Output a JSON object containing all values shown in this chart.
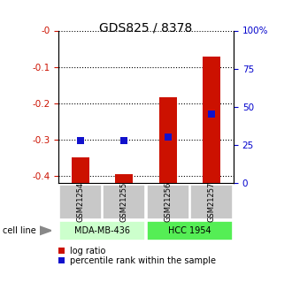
{
  "title": "GDS825 / 8378",
  "samples": [
    "GSM21254",
    "GSM21255",
    "GSM21256",
    "GSM21257"
  ],
  "log_ratios": [
    -0.35,
    -0.395,
    -0.185,
    -0.073
  ],
  "percentile_ranks": [
    28,
    28,
    30,
    45
  ],
  "cell_lines": [
    {
      "label": "MDA-MB-436",
      "samples": [
        0,
        1
      ],
      "color": "#ccffcc"
    },
    {
      "label": "HCC 1954",
      "samples": [
        2,
        3
      ],
      "color": "#55ee55"
    }
  ],
  "ylim_left": [
    -0.42,
    0.0
  ],
  "ylim_right": [
    0,
    100
  ],
  "left_yticks": [
    0.0,
    -0.1,
    -0.2,
    -0.3,
    -0.4
  ],
  "left_ytick_labels": [
    "-0",
    "-0.1",
    "-0.2",
    "-0.3",
    "-0.4"
  ],
  "right_yticks": [
    0,
    25,
    50,
    75,
    100
  ],
  "right_ytick_labels": [
    "0",
    "25",
    "50",
    "75",
    "100%"
  ],
  "bar_color": "#cc1100",
  "dot_color": "#1111cc",
  "bar_width": 0.4,
  "dot_size": 40,
  "background_color": "#ffffff",
  "sample_box_color": "#c8c8c8",
  "cell_line_label": "cell line",
  "legend_log_ratio": "log ratio",
  "legend_percentile": "percentile rank within the sample"
}
